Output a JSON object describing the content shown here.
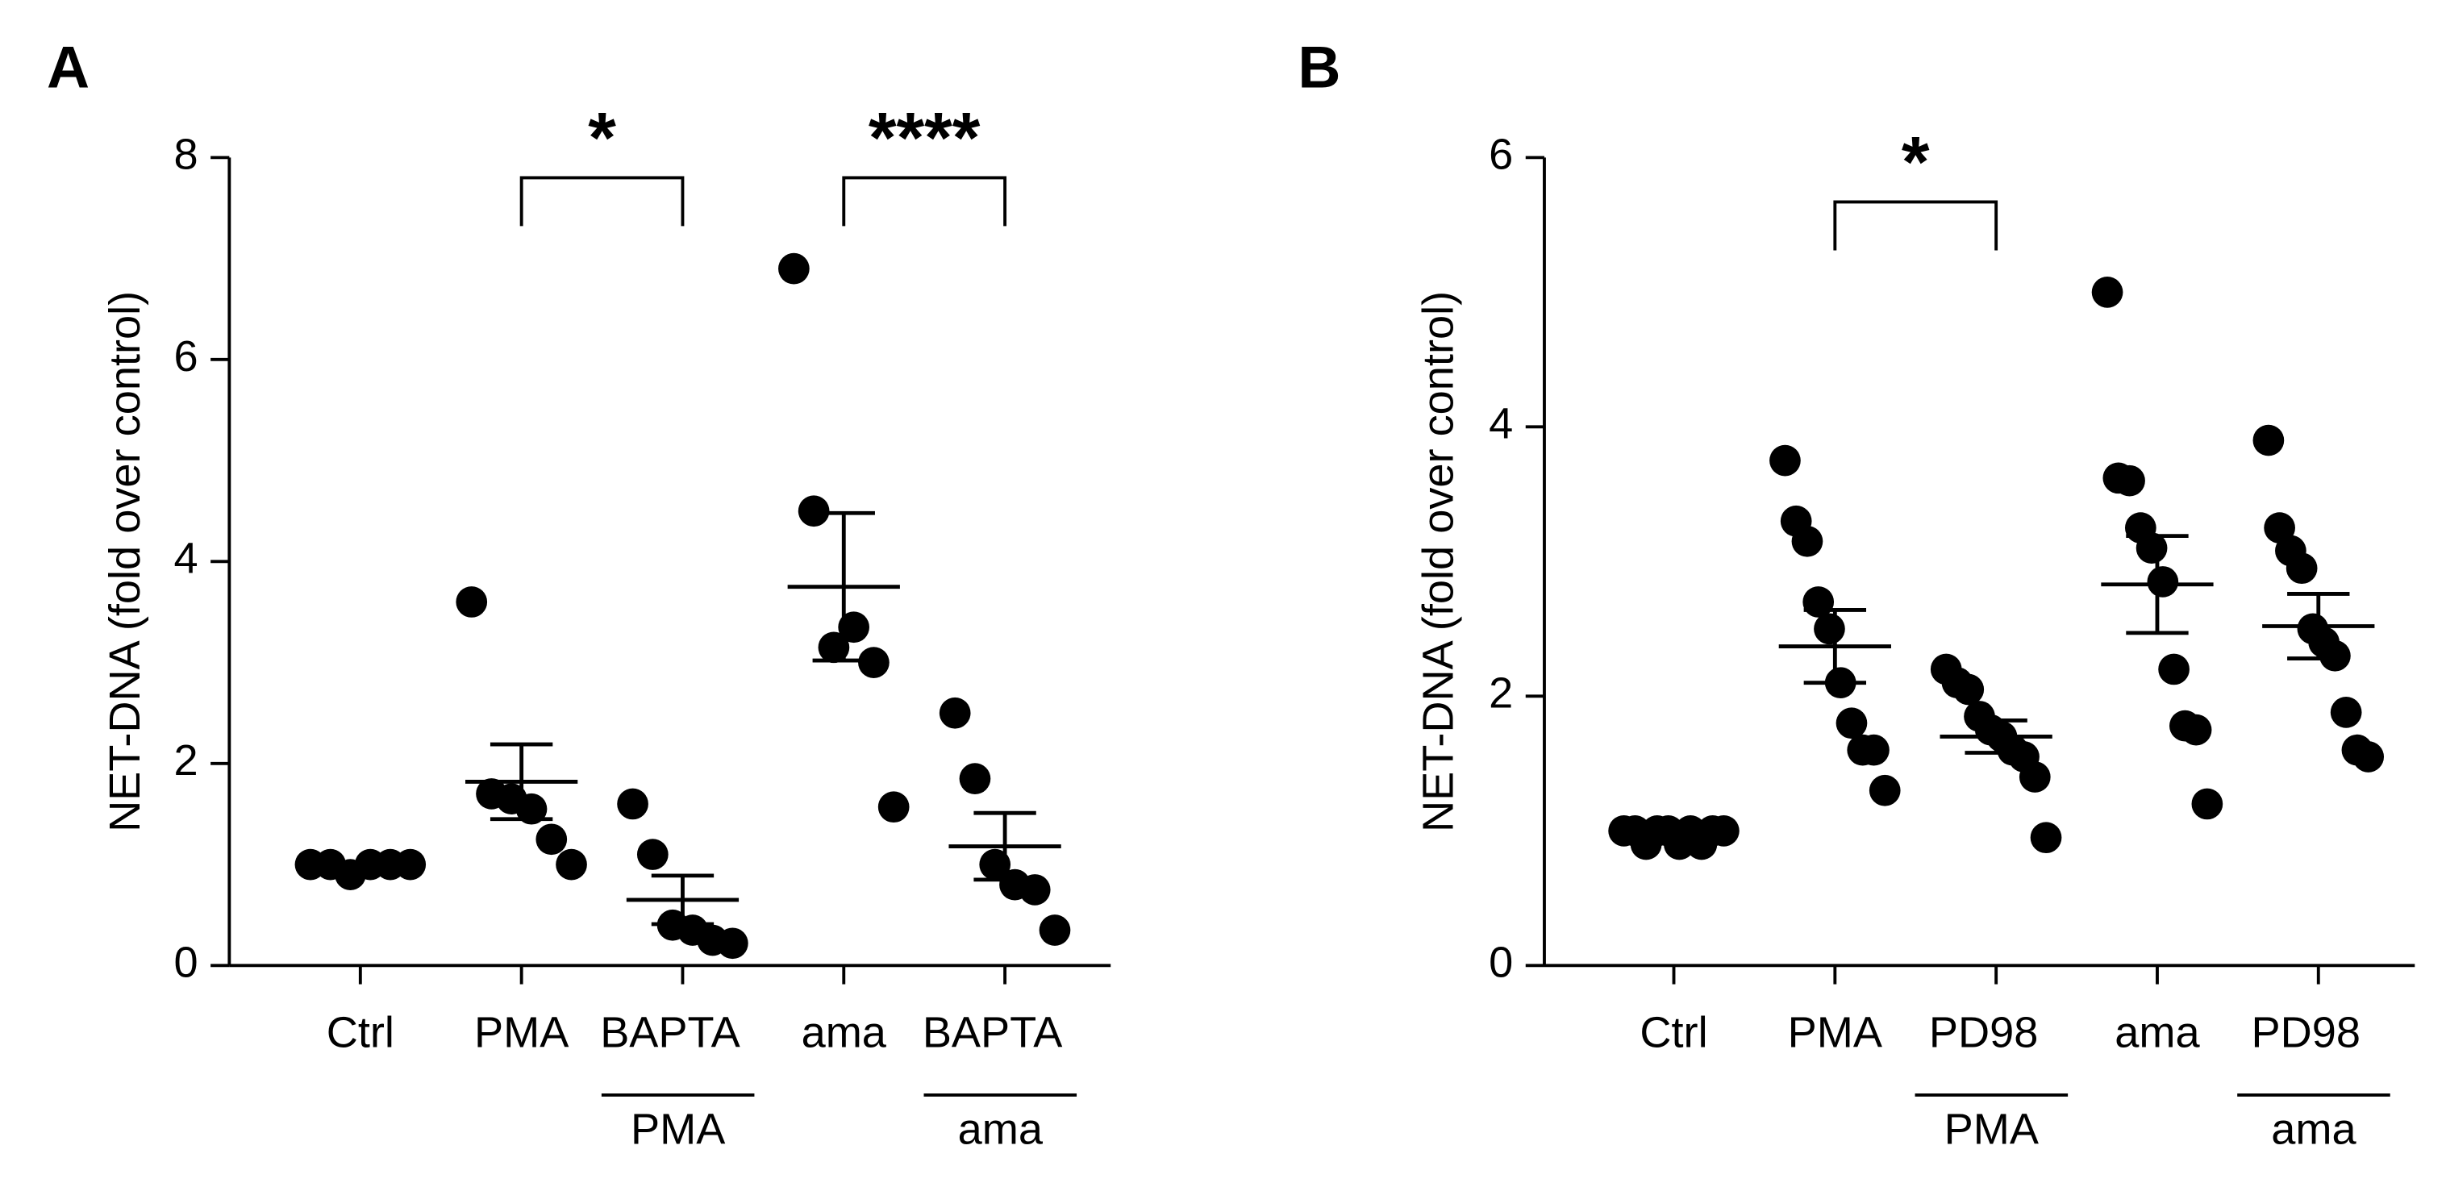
{
  "chart_data": [
    {
      "type": "dotplot",
      "panel": "A",
      "ylabel": "NET-DNA (fold over control)",
      "ylim": [
        0,
        8
      ],
      "yticks": [
        0,
        2,
        4,
        6,
        8
      ],
      "color": "#000000",
      "categories": [
        "Ctrl",
        "PMA",
        "BAPTA",
        "ama",
        "BAPTA"
      ],
      "sublabels": [
        null,
        null,
        "PMA",
        null,
        "ama"
      ],
      "points": [
        [
          1.0,
          1.0,
          0.9,
          1.0,
          1.0,
          1.0
        ],
        [
          3.6,
          1.7,
          1.65,
          1.55,
          1.25,
          1.0
        ],
        [
          1.6,
          1.1,
          0.4,
          0.35,
          0.25,
          0.22
        ],
        [
          6.9,
          4.5,
          3.15,
          3.35,
          3.0,
          1.57
        ],
        [
          2.5,
          1.85,
          1.0,
          0.8,
          0.75,
          0.35
        ]
      ],
      "mean": [
        0.98,
        1.82,
        0.65,
        3.75,
        1.18
      ],
      "sem": [
        0.02,
        0.37,
        0.24,
        0.73,
        0.33
      ],
      "significance": [
        {
          "label": "*",
          "between": [
            1,
            2
          ],
          "y": 7.8
        },
        {
          "label": "****",
          "between": [
            3,
            4
          ],
          "y": 7.8
        }
      ]
    },
    {
      "type": "dotplot",
      "panel": "B",
      "ylabel": "NET-DNA (fold over control)",
      "ylim": [
        0,
        6
      ],
      "yticks": [
        0,
        2,
        4,
        6
      ],
      "color": "#000000",
      "categories": [
        "Ctrl",
        "PMA",
        "PD98",
        "ama",
        "PD98"
      ],
      "sublabels": [
        null,
        null,
        "PMA",
        null,
        "ama"
      ],
      "points": [
        [
          1.0,
          1.0,
          0.9,
          1.0,
          1.0,
          0.9,
          1.0,
          0.9,
          1.0,
          1.0
        ],
        [
          3.75,
          3.3,
          3.15,
          2.7,
          2.5,
          2.1,
          1.8,
          1.6,
          1.6,
          1.3
        ],
        [
          2.2,
          2.1,
          2.05,
          1.85,
          1.75,
          1.7,
          1.6,
          1.55,
          1.4,
          0.95
        ],
        [
          5.0,
          3.62,
          3.6,
          3.25,
          3.1,
          2.85,
          2.2,
          1.78,
          1.75,
          1.2
        ],
        [
          3.9,
          3.25,
          3.08,
          2.95,
          2.5,
          2.4,
          2.3,
          1.88,
          1.6,
          1.55
        ]
      ],
      "mean": [
        0.97,
        2.37,
        1.7,
        2.83,
        2.52
      ],
      "sem": [
        0.01,
        0.27,
        0.12,
        0.36,
        0.24
      ],
      "significance": [
        {
          "label": "*",
          "between": [
            1,
            2
          ],
          "y": 5.67
        }
      ]
    }
  ]
}
